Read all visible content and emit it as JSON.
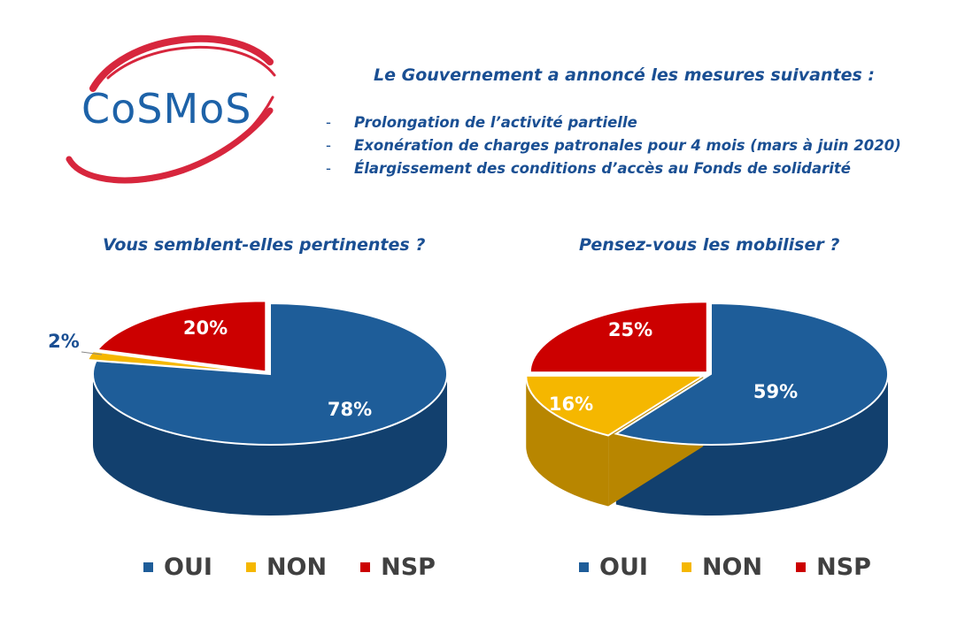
{
  "brand": {
    "name": "CoSMoS"
  },
  "intro": {
    "heading": "Le Gouvernement a annoncé les mesures suivantes :",
    "bullets": [
      {
        "dash": "-",
        "text": "Prolongation de l’activité partielle"
      },
      {
        "dash": "-",
        "text": "Exonération de charges patronales pour 4 mois (mars à juin 2020)"
      },
      {
        "dash": "-",
        "text": "Élargissement des conditions d’accès au Fonds de solidarité"
      }
    ]
  },
  "colors": {
    "oui": "#1e5d99",
    "non": "#f5b700",
    "nsp": "#cc0000",
    "title": "#1a4f93",
    "logo": "#d7263d"
  },
  "chart_data": [
    {
      "type": "pie",
      "title": "Vous semblent-elles pertinentes ?",
      "categories": [
        "OUI",
        "NON",
        "NSP"
      ],
      "values": [
        78,
        2,
        20
      ],
      "labels": [
        "78%",
        "2%",
        "20%"
      ],
      "legend": [
        "OUI",
        "NON",
        "NSP"
      ],
      "legend_position": "bottom"
    },
    {
      "type": "pie",
      "title": "Pensez-vous les mobiliser ?",
      "categories": [
        "OUI",
        "NON",
        "NSP"
      ],
      "values": [
        59,
        16,
        25
      ],
      "labels": [
        "59%",
        "16%",
        "25%"
      ],
      "legend": [
        "OUI",
        "NON",
        "NSP"
      ],
      "legend_position": "bottom"
    }
  ]
}
